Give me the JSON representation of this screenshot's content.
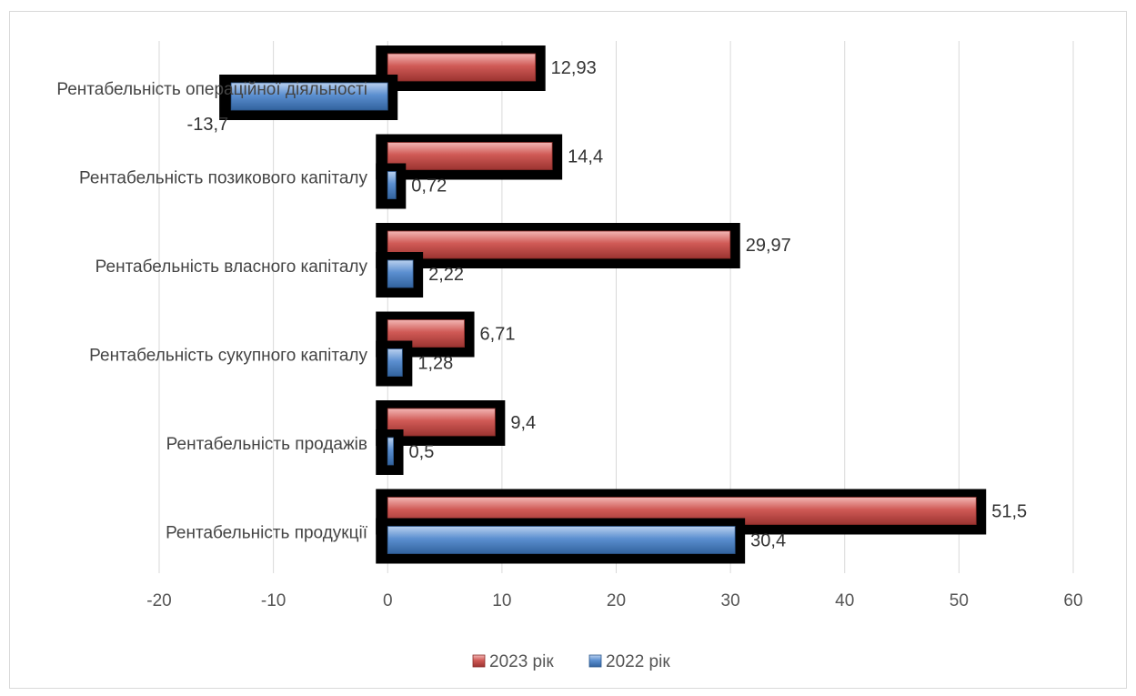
{
  "chart_data": {
    "type": "bar",
    "orientation": "horizontal",
    "categories": [
      "Рентабельність операційної діяльності",
      "Рентабельність позикового капіталу",
      "Рентабельність власного капіталу",
      "Рентабельність сукупного капіталу",
      "Рентабельність продажів",
      "Рентабельність продукції"
    ],
    "series": [
      {
        "name": "2023 рік",
        "values": [
          12.93,
          14.4,
          29.97,
          6.71,
          9.4,
          51.5
        ],
        "labels": [
          "12,93",
          "14,4",
          "29,97",
          "6,71",
          "9,4",
          "51,5"
        ],
        "color": "#c0504d"
      },
      {
        "name": "2022 рік",
        "values": [
          -13.7,
          0.72,
          2.22,
          1.28,
          0.5,
          30.4
        ],
        "labels": [
          "-13,7",
          "0,72",
          "2,22",
          "1,28",
          "0,5",
          "30,4"
        ],
        "color": "#4f81bd"
      }
    ],
    "xlim": [
      -20,
      60
    ],
    "xticks": [
      -20,
      -10,
      0,
      10,
      20,
      30,
      40,
      50,
      60
    ],
    "grid": true,
    "legend": "bottom"
  }
}
